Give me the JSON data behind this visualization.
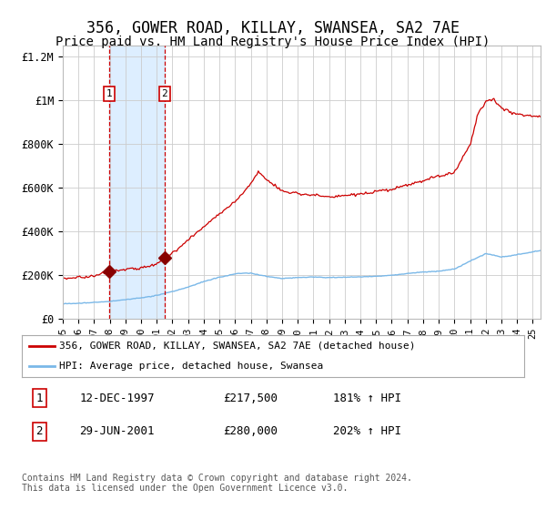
{
  "title": "356, GOWER ROAD, KILLAY, SWANSEA, SA2 7AE",
  "subtitle": "Price paid vs. HM Land Registry's House Price Index (HPI)",
  "title_fontsize": 12,
  "subtitle_fontsize": 10,
  "sale1_date_num": 1997.95,
  "sale1_price": 217500,
  "sale2_date_num": 2001.49,
  "sale2_price": 280000,
  "hpi_color": "#7ab8e8",
  "price_color": "#cc0000",
  "dot_color": "#880000",
  "vline_color": "#cc0000",
  "shade_color": "#ddeeff",
  "grid_color": "#cccccc",
  "background_color": "#ffffff",
  "ylim": [
    0,
    1250000
  ],
  "xlim_start": 1995.0,
  "xlim_end": 2025.5,
  "legend_entry1": "356, GOWER ROAD, KILLAY, SWANSEA, SA2 7AE (detached house)",
  "legend_entry2": "HPI: Average price, detached house, Swansea",
  "table_row1": [
    "1",
    "12-DEC-1997",
    "£217,500",
    "181% ↑ HPI"
  ],
  "table_row2": [
    "2",
    "29-JUN-2001",
    "£280,000",
    "202% ↑ HPI"
  ],
  "footnote": "Contains HM Land Registry data © Crown copyright and database right 2024.\nThis data is licensed under the Open Government Licence v3.0.",
  "yticks": [
    0,
    200000,
    400000,
    600000,
    800000,
    1000000,
    1200000
  ],
  "ytick_labels": [
    "£0",
    "£200K",
    "£400K",
    "£600K",
    "£800K",
    "£1M",
    "£1.2M"
  ],
  "hpi_knots_x": [
    1995.0,
    1996.0,
    1997.0,
    1998.0,
    1999.0,
    2000.0,
    2001.0,
    2002.0,
    2003.0,
    2004.0,
    2005.0,
    2006.0,
    2007.0,
    2008.0,
    2009.0,
    2010.0,
    2011.0,
    2012.0,
    2013.0,
    2014.0,
    2015.0,
    2016.0,
    2017.0,
    2018.0,
    2019.0,
    2020.0,
    2021.0,
    2022.0,
    2023.0,
    2024.0,
    2025.5
  ],
  "hpi_knots_y": [
    68000,
    71000,
    75000,
    80000,
    88000,
    96000,
    108000,
    125000,
    145000,
    170000,
    190000,
    205000,
    210000,
    195000,
    185000,
    190000,
    192000,
    190000,
    192000,
    193000,
    196000,
    200000,
    208000,
    215000,
    220000,
    228000,
    265000,
    300000,
    285000,
    295000,
    315000
  ],
  "price_knots_x": [
    1995.0,
    1996.0,
    1997.0,
    1997.95,
    1998.5,
    1999.0,
    2000.0,
    2001.0,
    2001.49,
    2002.0,
    2003.0,
    2004.0,
    2005.0,
    2006.0,
    2007.0,
    2007.5,
    2008.0,
    2009.0,
    2010.0,
    2011.0,
    2012.0,
    2013.0,
    2014.0,
    2015.0,
    2016.0,
    2017.0,
    2018.0,
    2019.0,
    2020.0,
    2021.0,
    2021.5,
    2022.0,
    2022.5,
    2023.0,
    2023.5,
    2024.0,
    2025.5
  ],
  "price_knots_y": [
    185000,
    190000,
    200000,
    217500,
    225000,
    230000,
    240000,
    255000,
    280000,
    310000,
    370000,
    430000,
    490000,
    545000,
    630000,
    690000,
    650000,
    600000,
    590000,
    585000,
    570000,
    575000,
    580000,
    590000,
    600000,
    620000,
    640000,
    660000,
    680000,
    810000,
    950000,
    1010000,
    1020000,
    980000,
    960000,
    950000,
    940000
  ]
}
